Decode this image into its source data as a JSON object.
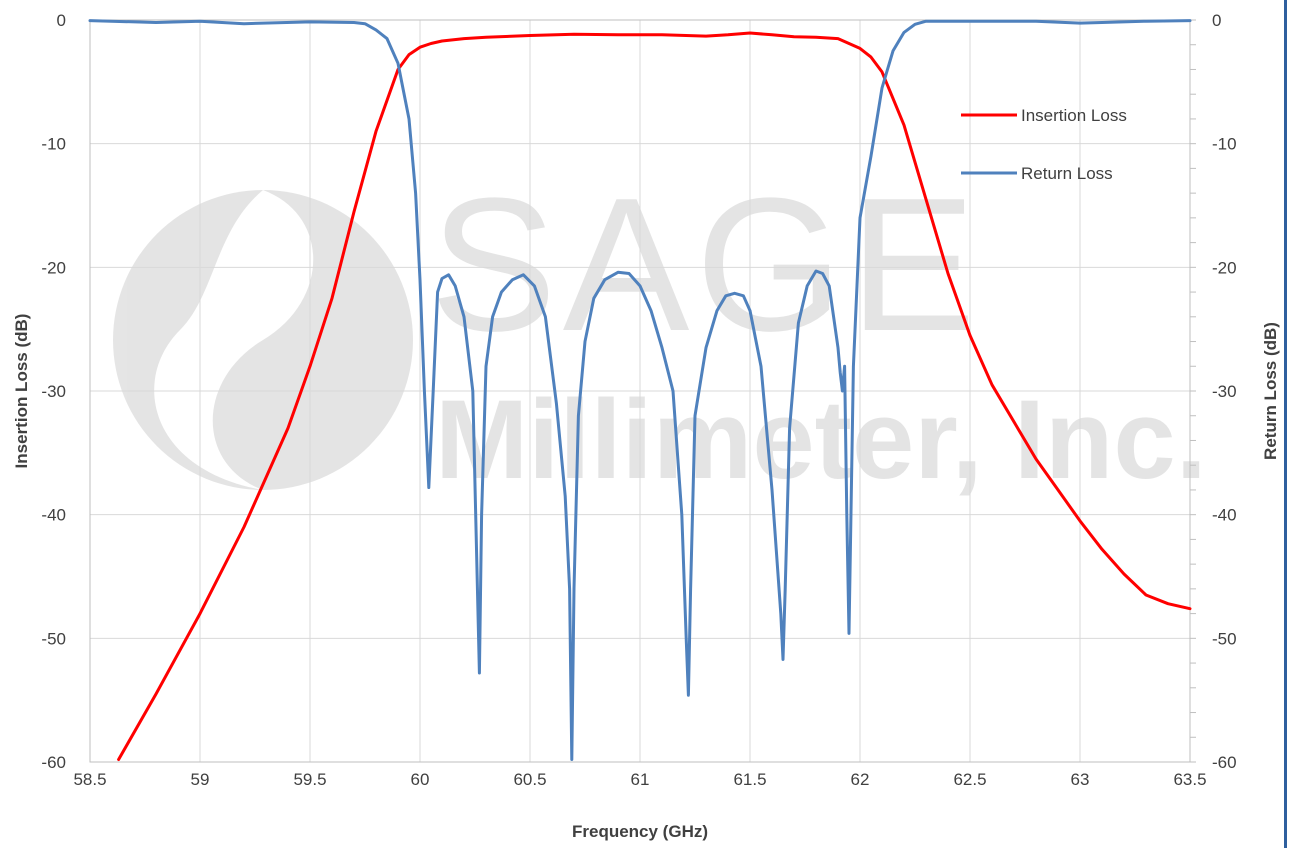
{
  "watermark": {
    "title": "SAGE",
    "subtitle": "Millimeter, Inc."
  },
  "chart_data": {
    "type": "line",
    "xlabel": "Frequency (GHz)",
    "ylabel_left": "Insertion Loss (dB)",
    "ylabel_right": "Return Loss (dB)",
    "xlim": [
      58.5,
      63.5
    ],
    "ylim": [
      -60,
      0
    ],
    "x_ticks": [
      "58.5",
      "59",
      "59.5",
      "60",
      "60.5",
      "61",
      "61.5",
      "62",
      "62.5",
      "63",
      "63.5"
    ],
    "y_ticks": [
      "0",
      "-10",
      "-20",
      "-30",
      "-40",
      "-50",
      "-60"
    ],
    "grid": true,
    "legend_position": "right",
    "series": [
      {
        "name": "Insertion Loss",
        "color": "#ff0000",
        "x": [
          58.63,
          58.8,
          59.0,
          59.2,
          59.4,
          59.5,
          59.6,
          59.7,
          59.8,
          59.9,
          59.95,
          60.0,
          60.05,
          60.1,
          60.2,
          60.3,
          60.5,
          60.7,
          60.9,
          61.1,
          61.3,
          61.4,
          61.5,
          61.6,
          61.7,
          61.8,
          61.9,
          61.95,
          62.0,
          62.05,
          62.1,
          62.2,
          62.3,
          62.4,
          62.5,
          62.6,
          62.7,
          62.8,
          62.9,
          63.0,
          63.1,
          63.2,
          63.3,
          63.4,
          63.5
        ],
        "y": [
          -59.8,
          -54.5,
          -48,
          -41,
          -33,
          -28,
          -22.5,
          -15.5,
          -9,
          -4,
          -2.8,
          -2.2,
          -1.9,
          -1.7,
          -1.5,
          -1.4,
          -1.25,
          -1.15,
          -1.2,
          -1.2,
          -1.3,
          -1.2,
          -1.05,
          -1.2,
          -1.35,
          -1.4,
          -1.5,
          -1.9,
          -2.3,
          -3.0,
          -4.2,
          -8.5,
          -14.5,
          -20.5,
          -25.5,
          -29.5,
          -32.5,
          -35.5,
          -38,
          -40.5,
          -42.8,
          -44.8,
          -46.5,
          -47.2,
          -47.6
        ]
      },
      {
        "name": "Return Loss",
        "color": "#4f81bd",
        "x": [
          58.5,
          58.8,
          59.0,
          59.2,
          59.5,
          59.7,
          59.75,
          59.8,
          59.85,
          59.9,
          59.95,
          59.98,
          60.0,
          60.02,
          60.04,
          60.06,
          60.08,
          60.1,
          60.13,
          60.16,
          60.2,
          60.24,
          60.27,
          60.28,
          60.3,
          60.33,
          60.37,
          60.42,
          60.47,
          60.52,
          60.57,
          60.62,
          60.66,
          60.68,
          60.69,
          60.7,
          60.72,
          60.75,
          60.79,
          60.84,
          60.9,
          60.95,
          61.0,
          61.05,
          61.1,
          61.15,
          61.19,
          61.21,
          61.22,
          61.23,
          61.25,
          61.3,
          61.35,
          61.39,
          61.43,
          61.47,
          61.5,
          61.55,
          61.6,
          61.64,
          61.65,
          61.66,
          61.68,
          61.72,
          61.76,
          61.8,
          61.83,
          61.86,
          61.88,
          61.9,
          61.91,
          61.92,
          61.93,
          61.94,
          61.95,
          61.97,
          62.0,
          62.05,
          62.1,
          62.15,
          62.2,
          62.25,
          62.3,
          62.4,
          62.6,
          62.8,
          63.0,
          63.1,
          63.3,
          63.5
        ],
        "y": [
          -0.05,
          -0.2,
          -0.1,
          -0.3,
          -0.15,
          -0.2,
          -0.3,
          -0.8,
          -1.5,
          -3.5,
          -8,
          -14,
          -21,
          -30,
          -37.8,
          -30,
          -22,
          -20.9,
          -20.6,
          -21.5,
          -24,
          -30,
          -52.8,
          -40,
          -28,
          -24,
          -22,
          -21,
          -20.6,
          -21.5,
          -24,
          -31,
          -38.5,
          -46,
          -59.8,
          -46,
          -32,
          -26,
          -22.5,
          -21,
          -20.4,
          -20.5,
          -21.5,
          -23.5,
          -26.5,
          -30,
          -40,
          -50,
          -54.6,
          -46,
          -32,
          -26.5,
          -23.5,
          -22.3,
          -22.1,
          -22.3,
          -23.5,
          -28,
          -38,
          -48,
          -51.7,
          -46,
          -33,
          -24.5,
          -21.5,
          -20.3,
          -20.5,
          -21.5,
          -24,
          -26.5,
          -28.5,
          -30,
          -28,
          -40,
          -49.6,
          -28,
          -16,
          -11,
          -5.5,
          -2.5,
          -1.0,
          -0.35,
          -0.1,
          -0.1,
          -0.1,
          -0.1,
          -0.25,
          -0.2,
          -0.1,
          -0.05
        ]
      }
    ]
  }
}
